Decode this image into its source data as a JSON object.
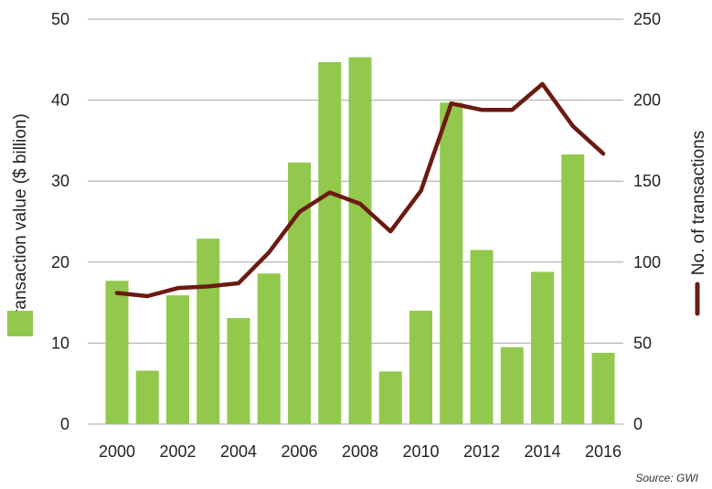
{
  "chart_data": {
    "type": "bar",
    "categories": [
      "2000",
      "2001",
      "2002",
      "2003",
      "2004",
      "2005",
      "2006",
      "2007",
      "2008",
      "2009",
      "2010",
      "2011",
      "2012",
      "2013",
      "2014",
      "2015",
      "2016"
    ],
    "x_tick_labels": [
      "2000",
      "2002",
      "2004",
      "2006",
      "2008",
      "2010",
      "2012",
      "2014",
      "2016"
    ],
    "series": [
      {
        "name": "Transaction value ($ billion)",
        "type": "bar",
        "axis": "left",
        "color": "#92c84b",
        "values": [
          17.7,
          6.6,
          15.9,
          22.9,
          13.1,
          18.6,
          32.3,
          44.7,
          45.3,
          6.5,
          14.0,
          39.7,
          21.5,
          9.5,
          18.8,
          33.3,
          8.8
        ]
      },
      {
        "name": "No. of transactions",
        "type": "line",
        "axis": "right",
        "color": "#6b1a12",
        "values": [
          81,
          79,
          84,
          85,
          87,
          106,
          131,
          143,
          136,
          119,
          144,
          198,
          194,
          194,
          210,
          184,
          167
        ]
      }
    ],
    "left_axis": {
      "label": "Transaction value ($ billion)",
      "ylim": [
        0,
        50
      ],
      "ticks": [
        "0",
        "10",
        "20",
        "30",
        "40",
        "50"
      ]
    },
    "right_axis": {
      "label": "No. of transactions",
      "ylim": [
        0,
        250
      ],
      "ticks": [
        "0",
        "50",
        "100",
        "150",
        "200",
        "250"
      ]
    },
    "grid": true,
    "source": "Source: GWI"
  }
}
